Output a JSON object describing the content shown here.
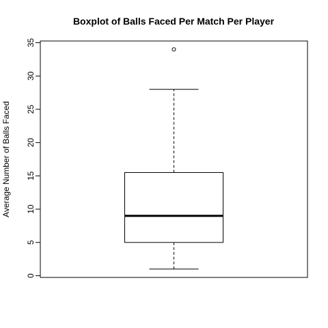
{
  "chart_data": {
    "type": "boxplot",
    "title": "Boxplot of Balls Faced Per Match Per Player",
    "xlabel": "",
    "ylabel": "Average Number of Balls Faced",
    "ylim": [
      0,
      35
    ],
    "yticks": [
      0,
      5,
      10,
      15,
      20,
      25,
      30,
      35
    ],
    "grid": false,
    "box": {
      "lower_whisker": 1,
      "q1": 5,
      "median": 9,
      "q3": 15.5,
      "upper_whisker": 28,
      "outliers": [
        34
      ]
    }
  }
}
